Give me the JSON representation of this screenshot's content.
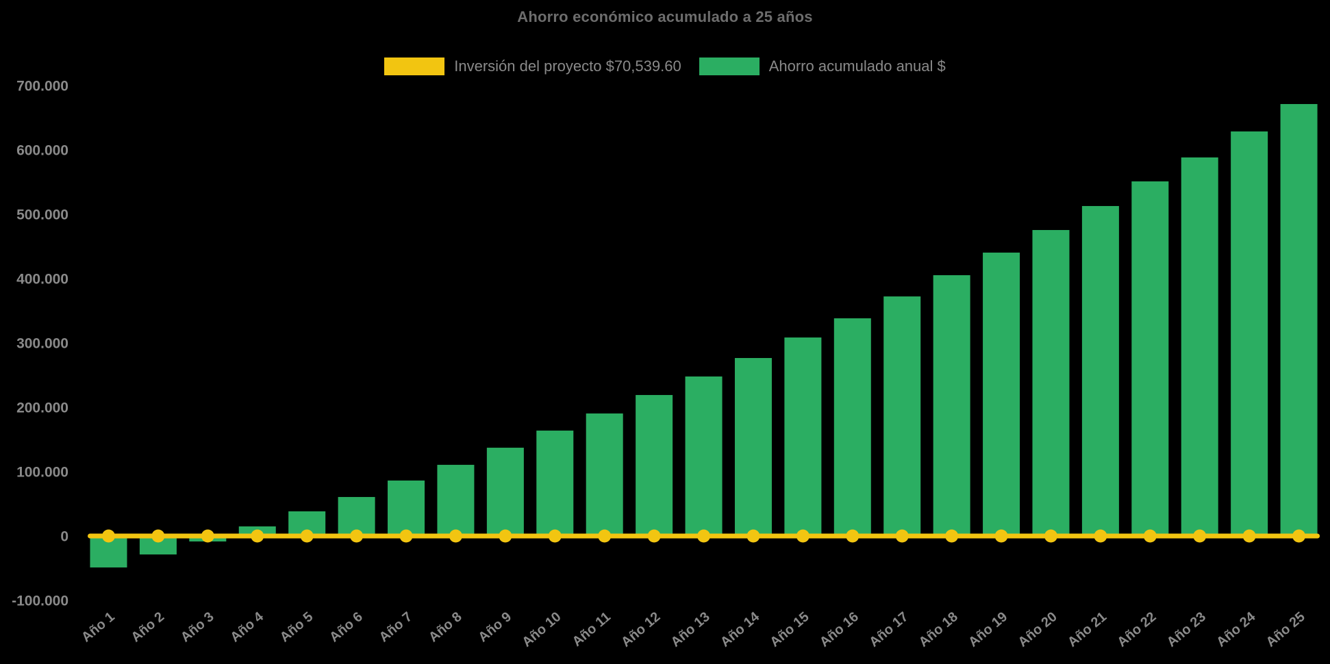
{
  "chart": {
    "background_color": "#000000",
    "title_color": "#6d6d6d",
    "axis_text_color": "#8a8a8a"
  },
  "chart_data": {
    "type": "bar",
    "title": "Ahorro económico acumulado a 25 años",
    "legend_position": "top",
    "grid": false,
    "categories": [
      "Año 1",
      "Año 2",
      "Año 3",
      "Año 4",
      "Año 5",
      "Año 6",
      "Año 7",
      "Año 8",
      "Año 9",
      "Año 10",
      "Año 11",
      "Año 12",
      "Año 13",
      "Año 14",
      "Año 15",
      "Año 16",
      "Año 17",
      "Año 18",
      "Año 19",
      "Año 20",
      "Año 21",
      "Año 22",
      "Año 23",
      "Año 24",
      "Año 25"
    ],
    "series": [
      {
        "name": "Inversión del proyecto $70,539.60",
        "type": "line",
        "color": "#F2C511",
        "values": [
          0,
          0,
          0,
          0,
          0,
          0,
          0,
          0,
          0,
          0,
          0,
          0,
          0,
          0,
          0,
          0,
          0,
          0,
          0,
          0,
          0,
          0,
          0,
          0,
          0
        ]
      },
      {
        "name": "Ahorro acumulado anual $",
        "type": "bar",
        "color": "#2BAE62",
        "values": [
          -48900,
          -28700,
          -8500,
          14900,
          38300,
          60600,
          86200,
          110600,
          137200,
          163800,
          190400,
          219100,
          247900,
          276600,
          308500,
          338300,
          372300,
          405300,
          440400,
          475500,
          512800,
          551100,
          588300,
          628700,
          671300
        ]
      }
    ],
    "y_axis": {
      "min": -100000,
      "max": 700000,
      "tick_step": 100000,
      "tick_values": [
        700000,
        600000,
        500000,
        400000,
        300000,
        200000,
        100000,
        0,
        -100000
      ],
      "tick_labels": [
        "700.000",
        "600.000",
        "500.000",
        "400.000",
        "300.000",
        "200.000",
        "100.000",
        "0",
        "-100.000"
      ]
    }
  }
}
